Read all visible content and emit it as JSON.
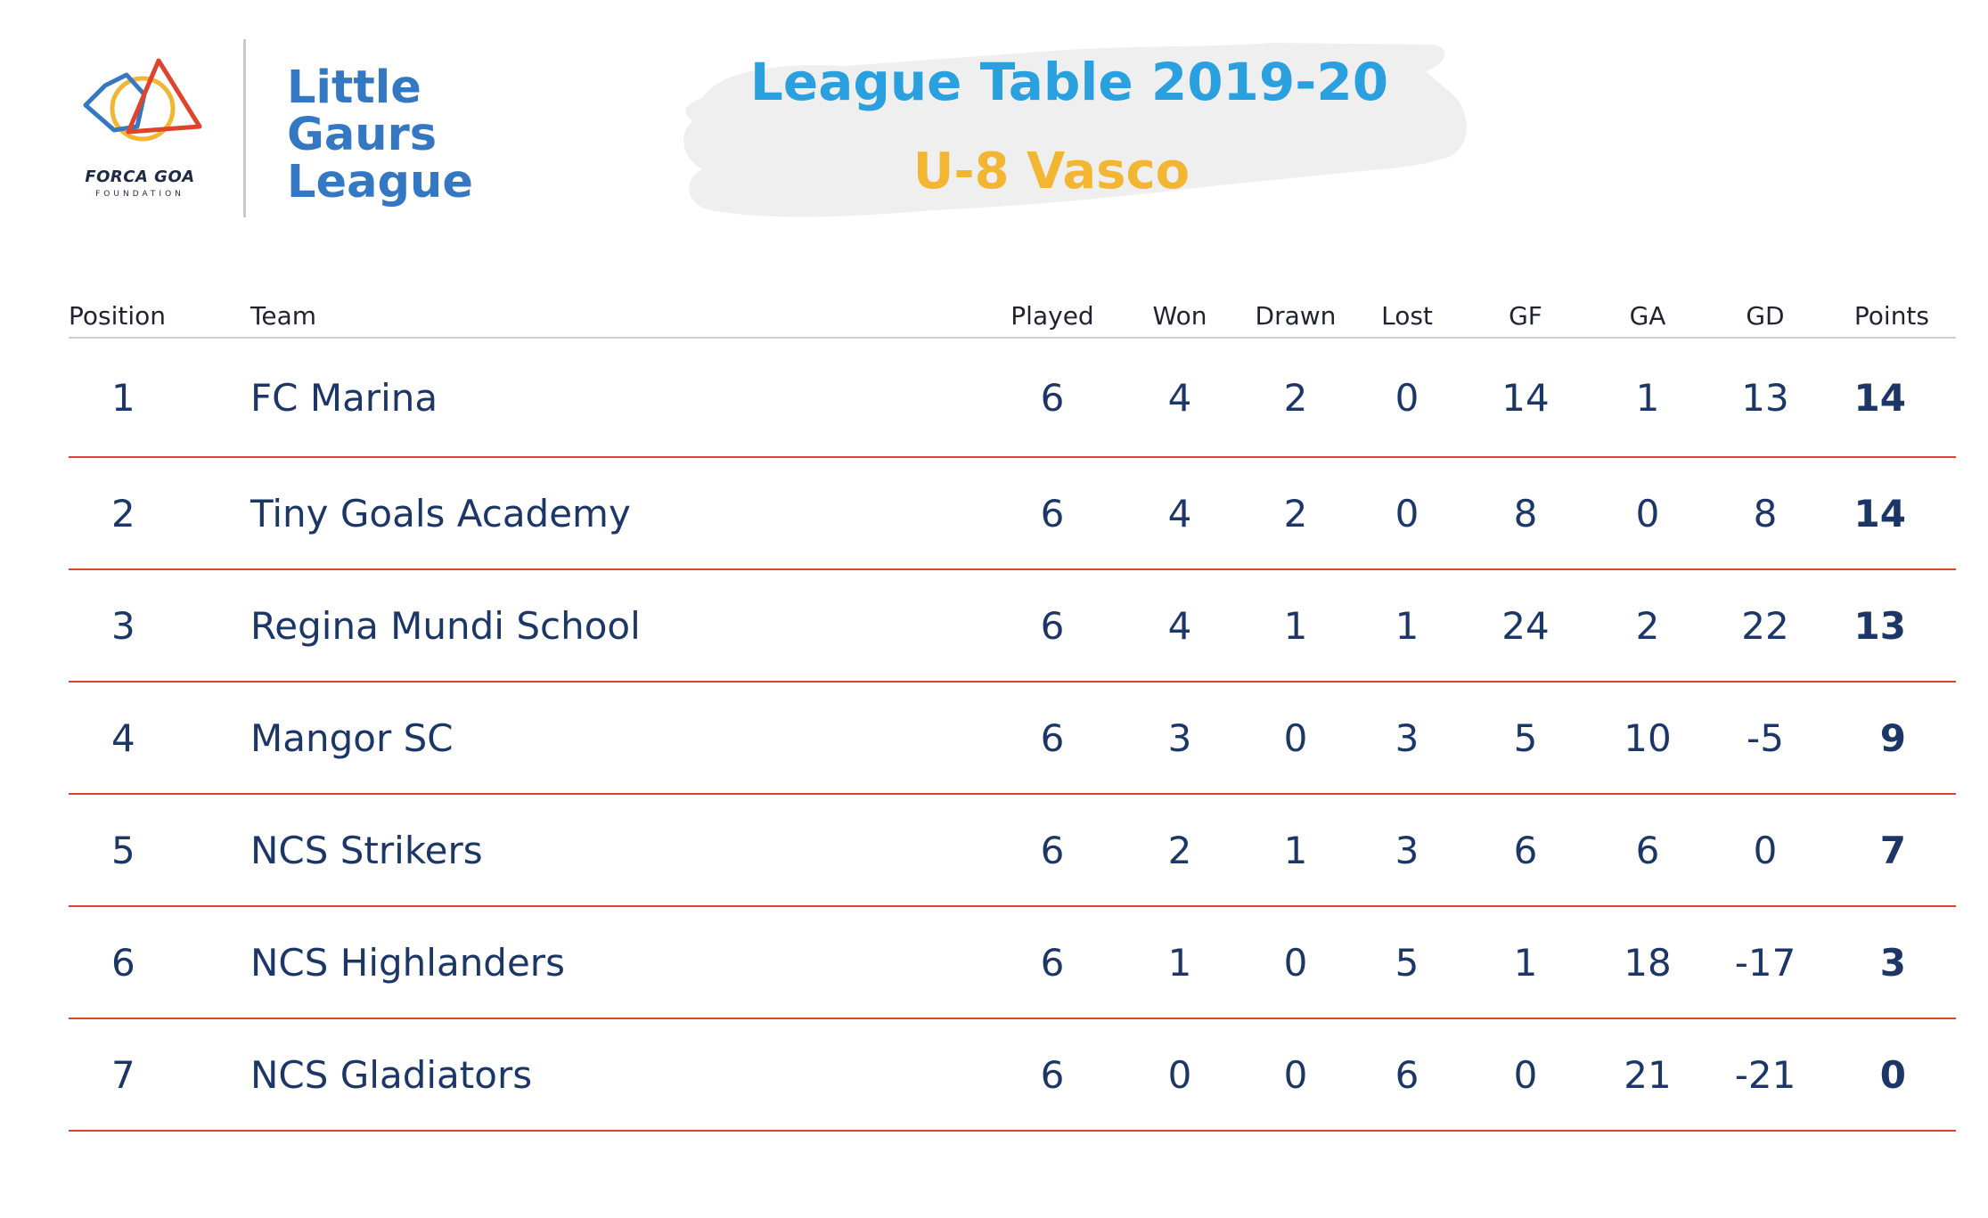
{
  "header": {
    "foundation_name": "FORCA GOA",
    "foundation_sub": "FOUNDATION",
    "brand_lines": [
      "Little",
      "Gaurs",
      "League"
    ],
    "title": "League Table 2019-20",
    "subtitle": "U-8 Vasco",
    "colors": {
      "title": "#2aa0df",
      "subtitle": "#f2b632",
      "brand": "#3478c4",
      "row_rule": "#e0432c"
    }
  },
  "table": {
    "columns": [
      "Position",
      "Team",
      "Played",
      "Won",
      "Drawn",
      "Lost",
      "GF",
      "GA",
      "GD",
      "Points"
    ],
    "rows": [
      {
        "position": "1",
        "team": "FC Marina",
        "played": "6",
        "won": "4",
        "drawn": "2",
        "lost": "0",
        "gf": "14",
        "ga": "1",
        "gd": "13",
        "points": "14"
      },
      {
        "position": "2",
        "team": "Tiny Goals Academy",
        "played": "6",
        "won": "4",
        "drawn": "2",
        "lost": "0",
        "gf": "8",
        "ga": "0",
        "gd": "8",
        "points": "14"
      },
      {
        "position": "3",
        "team": "Regina Mundi School",
        "played": "6",
        "won": "4",
        "drawn": "1",
        "lost": "1",
        "gf": "24",
        "ga": "2",
        "gd": "22",
        "points": "13"
      },
      {
        "position": "4",
        "team": "Mangor SC",
        "played": "6",
        "won": "3",
        "drawn": "0",
        "lost": "3",
        "gf": "5",
        "ga": "10",
        "gd": "-5",
        "points": "9"
      },
      {
        "position": "5",
        "team": "NCS Strikers",
        "played": "6",
        "won": "2",
        "drawn": "1",
        "lost": "3",
        "gf": "6",
        "ga": "6",
        "gd": "0",
        "points": "7"
      },
      {
        "position": "6",
        "team": "NCS Highlanders",
        "played": "6",
        "won": "1",
        "drawn": "0",
        "lost": "5",
        "gf": "1",
        "ga": "18",
        "gd": "-17",
        "points": "3"
      },
      {
        "position": "7",
        "team": "NCS Gladiators",
        "played": "6",
        "won": "0",
        "drawn": "0",
        "lost": "6",
        "gf": "0",
        "ga": "21",
        "gd": "-21",
        "points": "0"
      }
    ]
  }
}
